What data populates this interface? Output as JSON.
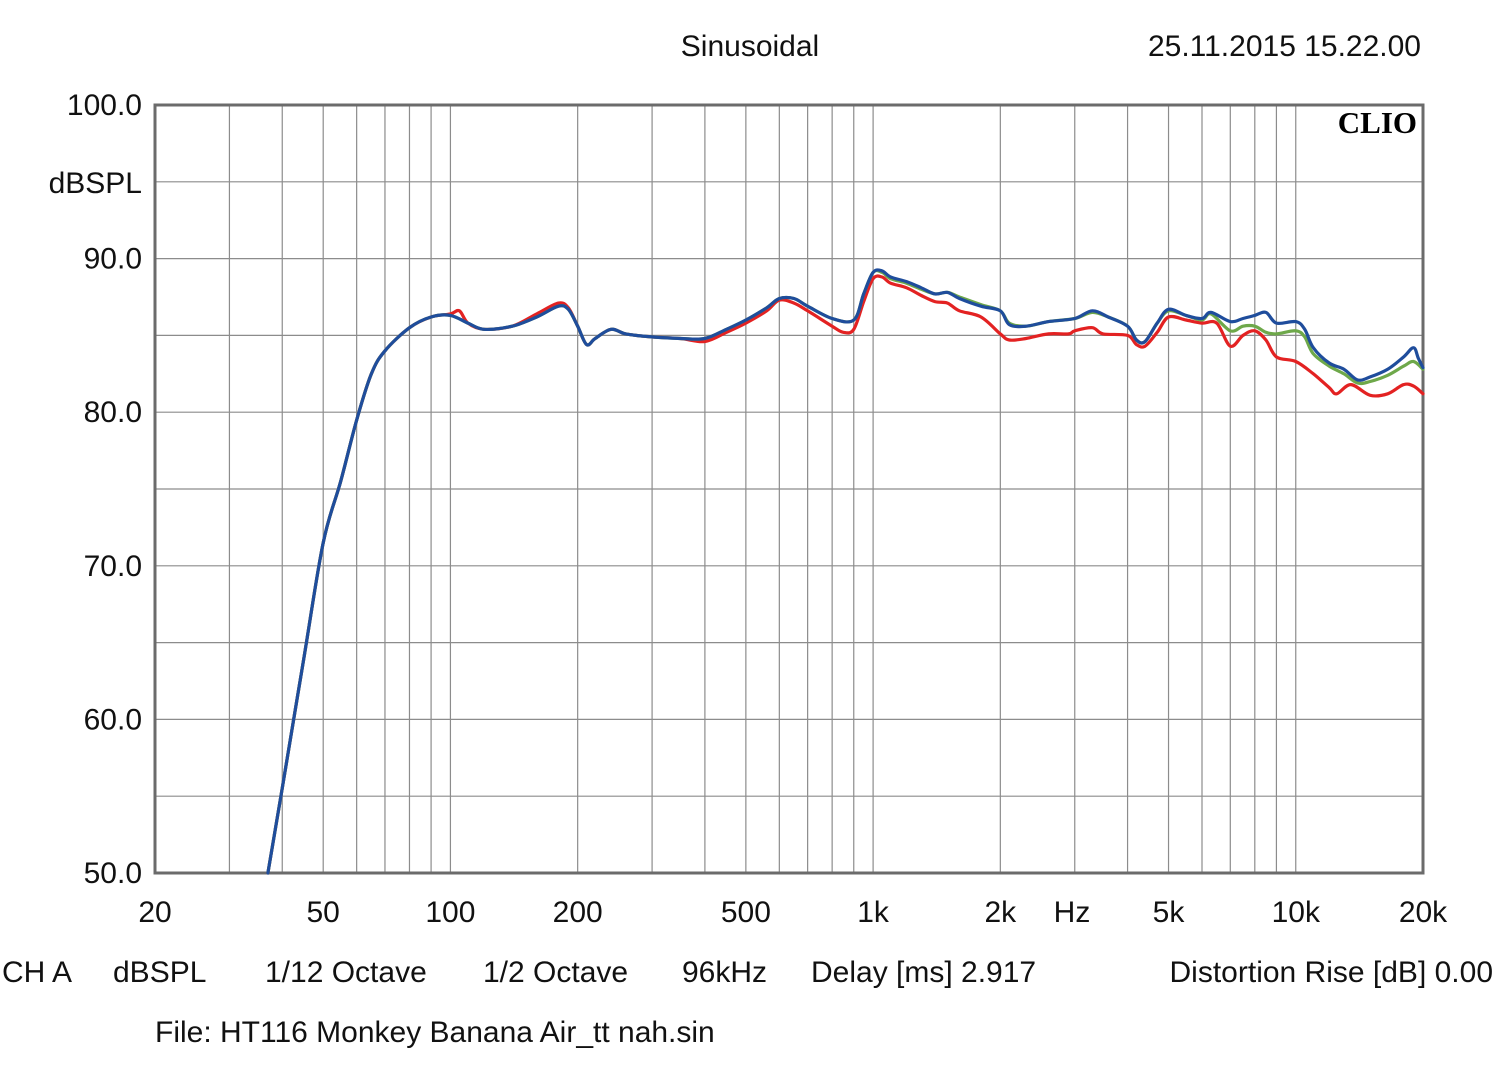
{
  "header": {
    "mode": "Sinusoidal",
    "datetime": "25.11.2015 15.22.00"
  },
  "brand": "CLIO",
  "footer": {
    "channel": "CH A",
    "unit": "dBSPL",
    "smoothing": "1/12 Octave",
    "step": "1/2 Octave",
    "rate": "96kHz",
    "delay": "Delay [ms] 2.917",
    "distortion": "Distortion Rise [dB] 0.00",
    "file": "File: HT116 Monkey Banana Air_tt nah.sin"
  },
  "chart_data": {
    "type": "line",
    "x_scale": "log",
    "xlim": [
      20,
      20000
    ],
    "ylim": [
      50,
      100
    ],
    "ylabel": "dBSPL",
    "xlabel": "Hz",
    "grid": true,
    "x_ticks": [
      {
        "value": 20,
        "label": "20"
      },
      {
        "value": 50,
        "label": "50"
      },
      {
        "value": 100,
        "label": "100"
      },
      {
        "value": 200,
        "label": "200"
      },
      {
        "value": 500,
        "label": "500"
      },
      {
        "value": 1000,
        "label": "1k"
      },
      {
        "value": 2000,
        "label": "2k"
      },
      {
        "value": 5000,
        "label": "5k"
      },
      {
        "value": 10000,
        "label": "10k"
      },
      {
        "value": 20000,
        "label": "20k"
      }
    ],
    "y_ticks": [
      {
        "value": 100,
        "label": "100.0"
      },
      {
        "value": 90,
        "label": "90.0"
      },
      {
        "value": 80,
        "label": "80.0"
      },
      {
        "value": 70,
        "label": "70.0"
      },
      {
        "value": 60,
        "label": "60.0"
      },
      {
        "value": 50,
        "label": "50.0"
      }
    ],
    "series": [
      {
        "color": "#e32222",
        "points": [
          [
            37,
            50
          ],
          [
            40,
            55.5
          ],
          [
            45,
            64
          ],
          [
            50,
            71.5
          ],
          [
            55,
            75.5
          ],
          [
            60,
            79.5
          ],
          [
            65,
            82.5
          ],
          [
            70,
            84
          ],
          [
            80,
            85.5
          ],
          [
            90,
            86.2
          ],
          [
            100,
            86.4
          ],
          [
            105,
            86.6
          ],
          [
            110,
            85.8
          ],
          [
            120,
            85.4
          ],
          [
            140,
            85.6
          ],
          [
            160,
            86.4
          ],
          [
            180,
            87.1
          ],
          [
            190,
            86.8
          ],
          [
            200,
            85.6
          ],
          [
            210,
            84.4
          ],
          [
            220,
            84.8
          ],
          [
            240,
            85.4
          ],
          [
            260,
            85.1
          ],
          [
            300,
            84.9
          ],
          [
            350,
            84.8
          ],
          [
            400,
            84.6
          ],
          [
            450,
            85.2
          ],
          [
            500,
            85.8
          ],
          [
            560,
            86.6
          ],
          [
            600,
            87.3
          ],
          [
            650,
            87.1
          ],
          [
            700,
            86.6
          ],
          [
            800,
            85.6
          ],
          [
            850,
            85.2
          ],
          [
            900,
            85.4
          ],
          [
            950,
            87.2
          ],
          [
            1000,
            88.7
          ],
          [
            1050,
            88.8
          ],
          [
            1100,
            88.4
          ],
          [
            1200,
            88.1
          ],
          [
            1300,
            87.6
          ],
          [
            1400,
            87.2
          ],
          [
            1500,
            87.1
          ],
          [
            1600,
            86.6
          ],
          [
            1800,
            86.2
          ],
          [
            2000,
            85.1
          ],
          [
            2100,
            84.7
          ],
          [
            2300,
            84.8
          ],
          [
            2600,
            85.1
          ],
          [
            2900,
            85.1
          ],
          [
            3000,
            85.3
          ],
          [
            3300,
            85.5
          ],
          [
            3500,
            85.1
          ],
          [
            4000,
            85.0
          ],
          [
            4200,
            84.4
          ],
          [
            4400,
            84.3
          ],
          [
            4700,
            85.2
          ],
          [
            5000,
            86.2
          ],
          [
            5500,
            86.0
          ],
          [
            6000,
            85.8
          ],
          [
            6500,
            85.8
          ],
          [
            7000,
            84.3
          ],
          [
            7500,
            85.0
          ],
          [
            8000,
            85.3
          ],
          [
            8500,
            84.7
          ],
          [
            9000,
            83.6
          ],
          [
            10000,
            83.3
          ],
          [
            11000,
            82.5
          ],
          [
            12000,
            81.6
          ],
          [
            12500,
            81.2
          ],
          [
            13500,
            81.8
          ],
          [
            15000,
            81.1
          ],
          [
            16500,
            81.2
          ],
          [
            18000,
            81.8
          ],
          [
            19000,
            81.7
          ],
          [
            20000,
            81.2
          ]
        ]
      },
      {
        "color": "#6ea84a",
        "points": [
          [
            37,
            50
          ],
          [
            40,
            55.5
          ],
          [
            45,
            64
          ],
          [
            50,
            71.5
          ],
          [
            55,
            75.5
          ],
          [
            60,
            79.5
          ],
          [
            65,
            82.5
          ],
          [
            70,
            84
          ],
          [
            80,
            85.5
          ],
          [
            90,
            86.2
          ],
          [
            100,
            86.3
          ],
          [
            110,
            85.8
          ],
          [
            120,
            85.4
          ],
          [
            140,
            85.6
          ],
          [
            160,
            86.2
          ],
          [
            180,
            86.9
          ],
          [
            190,
            86.7
          ],
          [
            200,
            85.6
          ],
          [
            210,
            84.4
          ],
          [
            220,
            84.8
          ],
          [
            240,
            85.4
          ],
          [
            260,
            85.1
          ],
          [
            300,
            84.9
          ],
          [
            350,
            84.8
          ],
          [
            400,
            84.8
          ],
          [
            450,
            85.4
          ],
          [
            500,
            86.0
          ],
          [
            560,
            86.8
          ],
          [
            600,
            87.4
          ],
          [
            650,
            87.4
          ],
          [
            700,
            86.9
          ],
          [
            800,
            86.1
          ],
          [
            900,
            86.0
          ],
          [
            950,
            87.7
          ],
          [
            1000,
            89.1
          ],
          [
            1050,
            89.1
          ],
          [
            1100,
            88.7
          ],
          [
            1200,
            88.4
          ],
          [
            1300,
            88.0
          ],
          [
            1400,
            87.7
          ],
          [
            1500,
            87.8
          ],
          [
            1600,
            87.5
          ],
          [
            1800,
            87.0
          ],
          [
            2000,
            86.6
          ],
          [
            2100,
            85.8
          ],
          [
            2300,
            85.6
          ],
          [
            2600,
            85.9
          ],
          [
            3000,
            86.1
          ],
          [
            3300,
            86.5
          ],
          [
            3600,
            86.2
          ],
          [
            4000,
            85.6
          ],
          [
            4200,
            84.7
          ],
          [
            4400,
            84.6
          ],
          [
            4700,
            85.8
          ],
          [
            5000,
            86.6
          ],
          [
            5500,
            86.3
          ],
          [
            6000,
            86.0
          ],
          [
            6300,
            86.4
          ],
          [
            7000,
            85.3
          ],
          [
            7500,
            85.6
          ],
          [
            8000,
            85.6
          ],
          [
            8500,
            85.2
          ],
          [
            9000,
            85.1
          ],
          [
            10000,
            85.3
          ],
          [
            10500,
            84.9
          ],
          [
            11000,
            83.8
          ],
          [
            12000,
            83.0
          ],
          [
            13000,
            82.5
          ],
          [
            14000,
            81.9
          ],
          [
            15000,
            82.0
          ],
          [
            16500,
            82.4
          ],
          [
            18000,
            83.0
          ],
          [
            19000,
            83.3
          ],
          [
            20000,
            82.8
          ]
        ]
      },
      {
        "color": "#1f4d9c",
        "points": [
          [
            37,
            50
          ],
          [
            40,
            55.5
          ],
          [
            45,
            64
          ],
          [
            50,
            71.5
          ],
          [
            55,
            75.5
          ],
          [
            60,
            79.5
          ],
          [
            65,
            82.5
          ],
          [
            70,
            84
          ],
          [
            80,
            85.5
          ],
          [
            90,
            86.2
          ],
          [
            100,
            86.3
          ],
          [
            110,
            85.8
          ],
          [
            120,
            85.4
          ],
          [
            140,
            85.6
          ],
          [
            160,
            86.2
          ],
          [
            180,
            86.9
          ],
          [
            190,
            86.7
          ],
          [
            200,
            85.6
          ],
          [
            210,
            84.4
          ],
          [
            220,
            84.8
          ],
          [
            240,
            85.4
          ],
          [
            260,
            85.1
          ],
          [
            300,
            84.9
          ],
          [
            350,
            84.8
          ],
          [
            400,
            84.8
          ],
          [
            450,
            85.4
          ],
          [
            500,
            86.0
          ],
          [
            560,
            86.8
          ],
          [
            600,
            87.4
          ],
          [
            650,
            87.4
          ],
          [
            700,
            86.9
          ],
          [
            800,
            86.1
          ],
          [
            900,
            86.0
          ],
          [
            950,
            87.7
          ],
          [
            1000,
            89.1
          ],
          [
            1050,
            89.2
          ],
          [
            1100,
            88.8
          ],
          [
            1200,
            88.5
          ],
          [
            1300,
            88.1
          ],
          [
            1400,
            87.7
          ],
          [
            1500,
            87.8
          ],
          [
            1600,
            87.4
          ],
          [
            1800,
            86.9
          ],
          [
            2000,
            86.6
          ],
          [
            2100,
            85.7
          ],
          [
            2300,
            85.6
          ],
          [
            2600,
            85.9
          ],
          [
            3000,
            86.1
          ],
          [
            3300,
            86.6
          ],
          [
            3600,
            86.2
          ],
          [
            4000,
            85.6
          ],
          [
            4200,
            84.7
          ],
          [
            4400,
            84.6
          ],
          [
            4700,
            85.8
          ],
          [
            5000,
            86.7
          ],
          [
            5500,
            86.3
          ],
          [
            6000,
            86.1
          ],
          [
            6300,
            86.5
          ],
          [
            7000,
            85.9
          ],
          [
            7500,
            86.1
          ],
          [
            8000,
            86.3
          ],
          [
            8500,
            86.5
          ],
          [
            9000,
            85.8
          ],
          [
            10000,
            85.9
          ],
          [
            10500,
            85.4
          ],
          [
            11000,
            84.2
          ],
          [
            12000,
            83.2
          ],
          [
            13000,
            82.8
          ],
          [
            14000,
            82.1
          ],
          [
            15000,
            82.3
          ],
          [
            16500,
            82.8
          ],
          [
            18000,
            83.6
          ],
          [
            19000,
            84.2
          ],
          [
            19500,
            83.5
          ],
          [
            20000,
            82.9
          ]
        ]
      }
    ]
  }
}
